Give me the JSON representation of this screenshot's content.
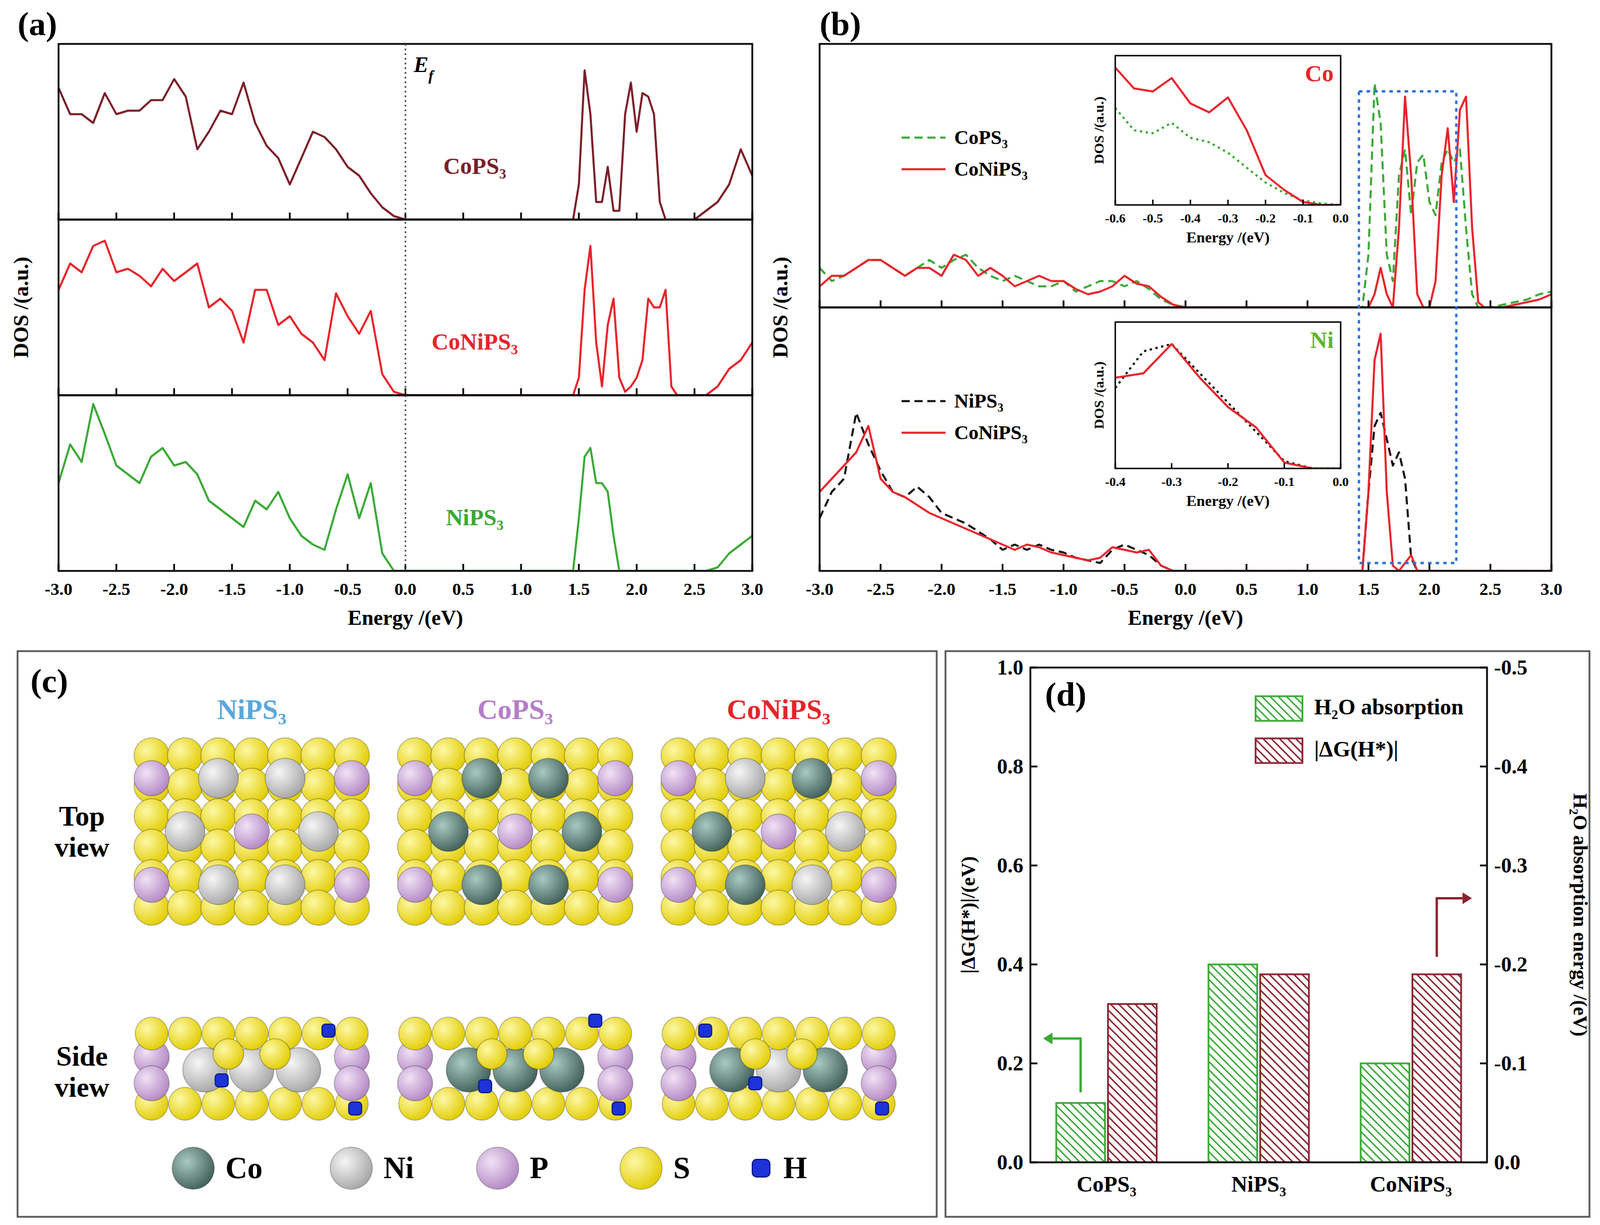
{
  "chart_data": [
    {
      "type": "line",
      "panel": "(a)",
      "xlabel": "Energy /(eV)",
      "ylabel": "DOS /(a.u.)",
      "annotations": [
        {
          "text": "Ef",
          "x": 0
        }
      ],
      "x": [
        -3.0,
        -2.9,
        -2.8,
        -2.7,
        -2.6,
        -2.5,
        -2.4,
        -2.3,
        -2.2,
        -2.1,
        -2.0,
        -1.9,
        -1.8,
        -1.7,
        -1.6,
        -1.5,
        -1.4,
        -1.3,
        -1.2,
        -1.1,
        -1.0,
        -0.9,
        -0.8,
        -0.7,
        -0.6,
        -0.5,
        -0.4,
        -0.3,
        -0.2,
        -0.1,
        0.0,
        0.1,
        0.2,
        0.3,
        0.4,
        0.5,
        0.6,
        0.7,
        0.8,
        0.9,
        1.0,
        1.1,
        1.2,
        1.3,
        1.4,
        1.45,
        1.5,
        1.55,
        1.6,
        1.65,
        1.7,
        1.75,
        1.8,
        1.85,
        1.9,
        1.95,
        2.0,
        2.05,
        2.1,
        2.15,
        2.2,
        2.25,
        2.3,
        2.35,
        2.4,
        2.45,
        2.5,
        2.6,
        2.7,
        2.8,
        2.9,
        3.0
      ],
      "xlim": [
        -3,
        3
      ],
      "xticks": [
        {
          "value": -3,
          "label": "-3.0"
        },
        -2.5,
        {
          "value": -2,
          "label": "-2.0"
        },
        -1.5,
        {
          "value": -1,
          "label": "-1.0"
        },
        -0.5,
        {
          "value": 0,
          "label": "0.0"
        },
        0.5,
        {
          "value": 1,
          "label": "1.0"
        },
        1.5,
        {
          "value": 2,
          "label": "2.0"
        },
        2.5,
        {
          "value": 3,
          "label": "3.0"
        }
      ],
      "ylim": [
        0,
        1
      ],
      "tick_labels": "x",
      "series": [
        {
          "name": "CoPS₃",
          "color": "#7b1e28",
          "line_style": "solid",
          "values": [
            0.75,
            0.6,
            0.6,
            0.55,
            0.72,
            0.6,
            0.62,
            0.62,
            0.68,
            0.68,
            0.8,
            0.7,
            0.4,
            0.5,
            0.62,
            0.6,
            0.78,
            0.55,
            0.42,
            0.35,
            0.2,
            0.35,
            0.5,
            0.47,
            0.4,
            0.3,
            0.25,
            0.15,
            0.07,
            0.02,
            0,
            0,
            0,
            0,
            0,
            0,
            0,
            0,
            0,
            0,
            0,
            0,
            0,
            0,
            0,
            0,
            0.2,
            0.85,
            0.6,
            0.1,
            0.1,
            0.3,
            0.05,
            0.05,
            0.6,
            0.78,
            0.5,
            0.72,
            0.7,
            0.6,
            0.1,
            0,
            0,
            0,
            0,
            0,
            0,
            0.05,
            0.1,
            0.2,
            0.4,
            0.25
          ]
        },
        {
          "name": "CoNiPS₃",
          "color": "#e8232a",
          "line_style": "solid",
          "values": [
            0.6,
            0.75,
            0.7,
            0.85,
            0.88,
            0.7,
            0.72,
            0.68,
            0.62,
            0.72,
            0.65,
            0.7,
            0.75,
            0.5,
            0.55,
            0.48,
            0.3,
            0.6,
            0.6,
            0.4,
            0.45,
            0.35,
            0.3,
            0.2,
            0.58,
            0.45,
            0.35,
            0.48,
            0.12,
            0.02,
            0,
            0,
            0,
            0,
            0,
            0,
            0,
            0,
            0,
            0,
            0,
            0,
            0,
            0,
            0,
            0,
            0.1,
            0.6,
            0.85,
            0.3,
            0.05,
            0.4,
            0.55,
            0.1,
            0.02,
            0.05,
            0.1,
            0.2,
            0.55,
            0.5,
            0.5,
            0.6,
            0.05,
            0,
            0,
            0,
            0,
            0,
            0.05,
            0.15,
            0.2,
            0.3
          ]
        },
        {
          "name": "NiPS₃",
          "color": "#39a935",
          "line_style": "solid",
          "values": [
            0.5,
            0.72,
            0.62,
            0.95,
            0.78,
            0.6,
            0.55,
            0.5,
            0.65,
            0.7,
            0.6,
            0.62,
            0.55,
            0.4,
            0.35,
            0.3,
            0.25,
            0.4,
            0.35,
            0.45,
            0.3,
            0.2,
            0.15,
            0.12,
            0.35,
            0.55,
            0.3,
            0.5,
            0.1,
            0,
            0,
            0,
            0,
            0,
            0,
            0,
            0,
            0,
            0,
            0,
            0,
            0,
            0,
            0,
            0,
            0,
            0.3,
            0.65,
            0.7,
            0.5,
            0.5,
            0.45,
            0.2,
            0,
            0,
            0,
            0,
            0,
            0,
            0,
            0,
            0,
            0,
            0,
            0,
            0,
            0,
            0,
            0.02,
            0.1,
            0.15,
            0.2
          ]
        }
      ]
    },
    {
      "type": "line",
      "panel": "(b)",
      "xlabel": "Energy /(eV)",
      "ylabel": "DOS /(a.u.)",
      "x": [
        -3.0,
        -2.9,
        -2.8,
        -2.7,
        -2.6,
        -2.5,
        -2.4,
        -2.3,
        -2.2,
        -2.1,
        -2.0,
        -1.9,
        -1.8,
        -1.7,
        -1.6,
        -1.5,
        -1.4,
        -1.3,
        -1.2,
        -1.1,
        -1.0,
        -0.9,
        -0.8,
        -0.7,
        -0.6,
        -0.5,
        -0.4,
        -0.3,
        -0.2,
        -0.1,
        0.0,
        0.1,
        0.2,
        0.3,
        0.4,
        0.5,
        0.6,
        0.7,
        0.8,
        0.9,
        1.0,
        1.1,
        1.2,
        1.3,
        1.4,
        1.45,
        1.5,
        1.55,
        1.6,
        1.65,
        1.7,
        1.75,
        1.8,
        1.85,
        1.9,
        1.95,
        2.0,
        2.05,
        2.1,
        2.15,
        2.2,
        2.25,
        2.3,
        2.35,
        2.4,
        2.45,
        2.5,
        2.6,
        2.7,
        2.8,
        2.9,
        3.0
      ],
      "xlim": [
        -3,
        3
      ],
      "xticks": [
        {
          "value": -3,
          "label": "-3.0"
        },
        -2.5,
        {
          "value": -2,
          "label": "-2.0"
        },
        -1.5,
        {
          "value": -1,
          "label": "-1.0"
        },
        -0.5,
        {
          "value": 0,
          "label": "0.0"
        },
        0.5,
        {
          "value": 1,
          "label": "1.0"
        },
        1.5,
        {
          "value": 2,
          "label": "2.0"
        },
        2.5,
        {
          "value": 3,
          "label": "3.0"
        }
      ],
      "ylim": [
        0,
        1
      ],
      "tick_labels": "x",
      "legend": "upper left",
      "subplots": [
        {
          "series": [
            {
              "name": "CoPS₃",
              "color": "#39a935",
              "line_style": "dashed",
              "values": [
                0.15,
                0.1,
                0.12,
                0.15,
                0.18,
                0.18,
                0.15,
                0.12,
                0.15,
                0.18,
                0.15,
                0.18,
                0.2,
                0.15,
                0.12,
                0.1,
                0.12,
                0.1,
                0.08,
                0.08,
                0.1,
                0.06,
                0.08,
                0.1,
                0.1,
                0.08,
                0.1,
                0.07,
                0.03,
                0.01,
                0,
                0,
                0,
                0,
                0,
                0,
                0,
                0,
                0,
                0,
                0,
                0,
                0,
                0,
                0,
                0,
                0.2,
                0.85,
                0.7,
                0.2,
                0.1,
                0.5,
                0.6,
                0.35,
                0.55,
                0.58,
                0.4,
                0.35,
                0.55,
                0.6,
                0.55,
                0.6,
                0.3,
                0.05,
                0,
                0,
                0,
                0.01,
                0.02,
                0.03,
                0.05,
                0.06
              ]
            },
            {
              "name": "CoNiPS₃",
              "color": "#e8232a",
              "line_style": "solid",
              "values": [
                0.08,
                0.12,
                0.12,
                0.15,
                0.18,
                0.18,
                0.15,
                0.12,
                0.15,
                0.15,
                0.12,
                0.2,
                0.18,
                0.12,
                0.15,
                0.12,
                0.08,
                0.1,
                0.12,
                0.1,
                0.1,
                0.07,
                0.05,
                0.06,
                0.08,
                0.12,
                0.09,
                0.08,
                0.04,
                0.01,
                0,
                0,
                0,
                0,
                0,
                0,
                0,
                0,
                0,
                0,
                0,
                0,
                0,
                0,
                0,
                0,
                0,
                0.05,
                0.15,
                0.05,
                0,
                0.3,
                0.8,
                0.5,
                0.05,
                0,
                0,
                0.1,
                0.5,
                0.68,
                0.4,
                0.75,
                0.8,
                0.3,
                0.02,
                0,
                0,
                0,
                0.01,
                0.02,
                0.03,
                0.05
              ]
            }
          ]
        },
        {
          "series": [
            {
              "name": "NiPS₃",
              "color": "#111111",
              "line_style": "dashed",
              "values": [
                0.2,
                0.3,
                0.35,
                0.6,
                0.48,
                0.38,
                0.3,
                0.28,
                0.32,
                0.28,
                0.22,
                0.2,
                0.18,
                0.15,
                0.12,
                0.08,
                0.1,
                0.08,
                0.1,
                0.08,
                0.07,
                0.05,
                0.04,
                0.03,
                0.08,
                0.1,
                0.08,
                0.06,
                0.02,
                0,
                0,
                0,
                0,
                0,
                0,
                0,
                0,
                0,
                0,
                0,
                0,
                0,
                0,
                0,
                0,
                0,
                0.3,
                0.55,
                0.6,
                0.5,
                0.4,
                0.45,
                0.35,
                0.05,
                0,
                0,
                0,
                0,
                0,
                0,
                0,
                0,
                0,
                0,
                0,
                0,
                0,
                0,
                0,
                0,
                0,
                0
              ]
            },
            {
              "name": "CoNiPS₃",
              "color": "#e8232a",
              "line_style": "solid",
              "values": [
                0.3,
                0.35,
                0.4,
                0.45,
                0.55,
                0.35,
                0.3,
                0.28,
                0.25,
                0.22,
                0.2,
                0.18,
                0.16,
                0.14,
                0.12,
                0.1,
                0.08,
                0.1,
                0.09,
                0.07,
                0.06,
                0.05,
                0.04,
                0.05,
                0.09,
                0.08,
                0.07,
                0.08,
                0.02,
                0,
                0,
                0,
                0,
                0,
                0,
                0,
                0,
                0,
                0,
                0,
                0,
                0,
                0,
                0,
                0,
                0,
                0.3,
                0.8,
                0.9,
                0.3,
                0.02,
                0,
                0.03,
                0.06,
                0,
                0,
                0,
                0,
                0,
                0,
                0,
                0,
                0,
                0,
                0,
                0,
                0,
                0,
                0,
                0,
                0,
                0
              ]
            }
          ]
        }
      ]
    },
    {
      "type": "line",
      "title": "Co",
      "xlabel": "Energy /(eV)",
      "ylabel": "DOS /(a.u.)",
      "x": [
        -0.6,
        -0.55,
        -0.5,
        -0.45,
        -0.4,
        -0.35,
        -0.3,
        -0.25,
        -0.2,
        -0.15,
        -0.1,
        -0.05,
        0.0
      ],
      "xlim": [
        -0.6,
        0
      ],
      "xticks": [
        -0.6,
        -0.5,
        -0.4,
        -0.3,
        -0.2,
        -0.1,
        {
          "value": 0,
          "label": "0.0"
        }
      ],
      "ylim": [
        0,
        1
      ],
      "tick_labels": "x",
      "series": [
        {
          "color": "#39a935",
          "line_style": "dotted",
          "values": [
            0.65,
            0.5,
            0.48,
            0.55,
            0.45,
            0.42,
            0.35,
            0.25,
            0.15,
            0.08,
            0.03,
            0.01,
            0
          ]
        },
        {
          "color": "#e8232a",
          "line_style": "solid",
          "values": [
            0.92,
            0.78,
            0.76,
            0.85,
            0.68,
            0.62,
            0.72,
            0.5,
            0.2,
            0.1,
            0.02,
            0,
            0
          ]
        }
      ]
    },
    {
      "type": "line",
      "title": "Ni",
      "xlabel": "Energy /(eV)",
      "ylabel": "DOS /(a.u.)",
      "x": [
        -0.4,
        -0.35,
        -0.3,
        -0.25,
        -0.2,
        -0.15,
        -0.1,
        -0.05,
        0.0
      ],
      "xlim": [
        -0.4,
        0
      ],
      "xticks": [
        -0.4,
        -0.3,
        -0.2,
        -0.1,
        {
          "value": 0,
          "label": "0.0"
        }
      ],
      "ylim": [
        0,
        1
      ],
      "tick_labels": "x",
      "series": [
        {
          "color": "#111111",
          "line_style": "dotted",
          "values": [
            0.55,
            0.8,
            0.85,
            0.65,
            0.45,
            0.25,
            0.05,
            0,
            0
          ]
        },
        {
          "color": "#e8232a",
          "line_style": "solid",
          "values": [
            0.62,
            0.65,
            0.85,
            0.62,
            0.42,
            0.28,
            0.04,
            0,
            0
          ]
        }
      ]
    },
    {
      "type": "bar",
      "panel": "(d)",
      "categories": [
        "CoPS₃",
        "NiPS₃",
        "CoNiPS₃"
      ],
      "ylabel": "|ΔG(H*)|/(eV)",
      "y2label": "H₂O absorption energy /(eV)",
      "ylim": [
        0,
        1
      ],
      "yticks": [
        {
          "value": 0,
          "label": "0.0"
        },
        0.2,
        0.4,
        0.6,
        0.8,
        {
          "value": 1,
          "label": "1.0"
        }
      ],
      "y2lim": [
        0,
        -0.5
      ],
      "y2ticks": [
        {
          "value": 0,
          "label": "0.0"
        },
        -0.1,
        -0.2,
        -0.3,
        -0.4,
        -0.5
      ],
      "legend": "upper right",
      "series": [
        {
          "name": "H₂O absorption",
          "color": "#3aaa35",
          "axis": "y2",
          "values": [
            -0.06,
            -0.2,
            -0.1
          ]
        },
        {
          "name": "|ΔG(H*)|",
          "color": "#8b2332",
          "values": [
            0.32,
            0.38,
            0.38
          ]
        }
      ]
    }
  ],
  "structure_panel": {
    "panel": "(c)",
    "columns": [
      "NiPS₃",
      "CoPS₃",
      "CoNiPS₃"
    ],
    "rows": [
      "Top view",
      "Side view"
    ],
    "legend": [
      "Co",
      "Ni",
      "P",
      "S",
      "H"
    ]
  }
}
